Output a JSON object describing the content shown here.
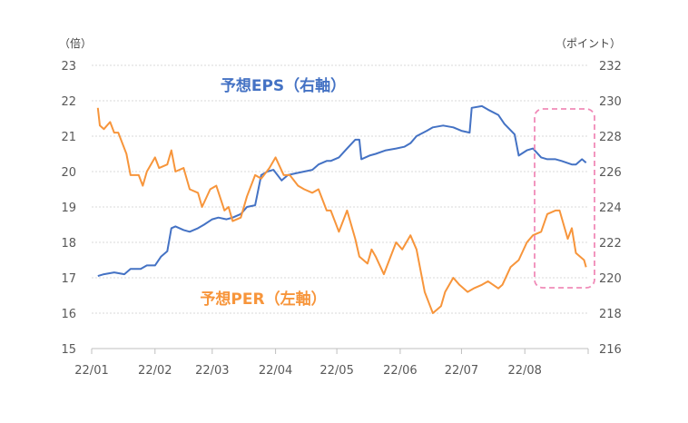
{
  "chart_data": {
    "type": "line",
    "left_axis_unit": "（倍）",
    "right_axis_unit": "（ポイント）",
    "left_ylim": [
      15,
      23
    ],
    "left_yticks": [
      "15",
      "16",
      "17",
      "18",
      "19",
      "20",
      "21",
      "22",
      "23"
    ],
    "right_ylim": [
      216,
      232
    ],
    "right_yticks": [
      "216",
      "218",
      "220",
      "222",
      "224",
      "226",
      "228",
      "230",
      "232"
    ],
    "x_tick_labels": [
      "22/01",
      "22/02",
      "22/03",
      "22/04",
      "22/05",
      "22/06",
      "22/07",
      "22/08"
    ],
    "grid": "horizontal-dotted",
    "series": [
      {
        "name": "予想EPS（右軸）",
        "axis": "right",
        "color": "#4472C4",
        "points": [
          [
            "2022-01-04",
            220.1
          ],
          [
            "2022-01-07",
            220.2
          ],
          [
            "2022-01-12",
            220.3
          ],
          [
            "2022-01-17",
            220.2
          ],
          [
            "2022-01-20",
            220.5
          ],
          [
            "2022-01-25",
            220.5
          ],
          [
            "2022-01-28",
            220.7
          ],
          [
            "2022-02-01",
            220.7
          ],
          [
            "2022-02-04",
            221.2
          ],
          [
            "2022-02-07",
            221.5
          ],
          [
            "2022-02-09",
            222.8
          ],
          [
            "2022-02-11",
            222.9
          ],
          [
            "2022-02-15",
            222.7
          ],
          [
            "2022-02-18",
            222.6
          ],
          [
            "2022-02-22",
            222.8
          ],
          [
            "2022-02-25",
            223.0
          ],
          [
            "2022-03-01",
            223.3
          ],
          [
            "2022-03-04",
            223.4
          ],
          [
            "2022-03-08",
            223.3
          ],
          [
            "2022-03-11",
            223.4
          ],
          [
            "2022-03-15",
            223.6
          ],
          [
            "2022-03-18",
            224.0
          ],
          [
            "2022-03-22",
            224.1
          ],
          [
            "2022-03-25",
            225.8
          ],
          [
            "2022-03-28",
            226.0
          ],
          [
            "2022-03-31",
            226.1
          ],
          [
            "2022-04-04",
            225.5
          ],
          [
            "2022-04-07",
            225.8
          ],
          [
            "2022-04-11",
            225.9
          ],
          [
            "2022-04-15",
            226.0
          ],
          [
            "2022-04-19",
            226.1
          ],
          [
            "2022-04-22",
            226.4
          ],
          [
            "2022-04-26",
            226.6
          ],
          [
            "2022-04-28",
            226.6
          ],
          [
            "2022-05-02",
            226.8
          ],
          [
            "2022-05-06",
            227.3
          ],
          [
            "2022-05-10",
            227.8
          ],
          [
            "2022-05-12",
            227.8
          ],
          [
            "2022-05-13",
            226.7
          ],
          [
            "2022-05-17",
            226.9
          ],
          [
            "2022-05-20",
            227.0
          ],
          [
            "2022-05-25",
            227.2
          ],
          [
            "2022-05-30",
            227.3
          ],
          [
            "2022-06-03",
            227.4
          ],
          [
            "2022-06-06",
            227.6
          ],
          [
            "2022-06-09",
            228.0
          ],
          [
            "2022-06-14",
            228.3
          ],
          [
            "2022-06-17",
            228.5
          ],
          [
            "2022-06-22",
            228.6
          ],
          [
            "2022-06-27",
            228.5
          ],
          [
            "2022-07-01",
            228.3
          ],
          [
            "2022-07-05",
            228.2
          ],
          [
            "2022-07-06",
            229.6
          ],
          [
            "2022-07-11",
            229.7
          ],
          [
            "2022-07-14",
            229.5
          ],
          [
            "2022-07-19",
            229.2
          ],
          [
            "2022-07-22",
            228.7
          ],
          [
            "2022-07-27",
            228.1
          ],
          [
            "2022-07-29",
            226.9
          ],
          [
            "2022-08-02",
            227.2
          ],
          [
            "2022-08-05",
            227.3
          ],
          [
            "2022-08-09",
            226.8
          ],
          [
            "2022-08-12",
            226.7
          ],
          [
            "2022-08-16",
            226.7
          ],
          [
            "2022-08-19",
            226.6
          ],
          [
            "2022-08-24",
            226.4
          ],
          [
            "2022-08-26",
            226.4
          ],
          [
            "2022-08-29",
            226.7
          ],
          [
            "2022-08-31",
            226.5
          ]
        ]
      },
      {
        "name": "予想PER（左軸）",
        "axis": "left",
        "color": "#F7953B",
        "points": [
          [
            "2022-01-04",
            21.8
          ],
          [
            "2022-01-05",
            21.3
          ],
          [
            "2022-01-07",
            21.2
          ],
          [
            "2022-01-10",
            21.4
          ],
          [
            "2022-01-12",
            21.1
          ],
          [
            "2022-01-14",
            21.1
          ],
          [
            "2022-01-18",
            20.5
          ],
          [
            "2022-01-20",
            19.9
          ],
          [
            "2022-01-24",
            19.9
          ],
          [
            "2022-01-26",
            19.6
          ],
          [
            "2022-01-28",
            20.0
          ],
          [
            "2022-02-01",
            20.4
          ],
          [
            "2022-02-03",
            20.1
          ],
          [
            "2022-02-07",
            20.2
          ],
          [
            "2022-02-09",
            20.6
          ],
          [
            "2022-02-11",
            20.0
          ],
          [
            "2022-02-15",
            20.1
          ],
          [
            "2022-02-18",
            19.5
          ],
          [
            "2022-02-22",
            19.4
          ],
          [
            "2022-02-24",
            19.0
          ],
          [
            "2022-02-28",
            19.5
          ],
          [
            "2022-03-03",
            19.6
          ],
          [
            "2022-03-07",
            18.9
          ],
          [
            "2022-03-09",
            19.0
          ],
          [
            "2022-03-11",
            18.6
          ],
          [
            "2022-03-15",
            18.7
          ],
          [
            "2022-03-18",
            19.3
          ],
          [
            "2022-03-22",
            19.9
          ],
          [
            "2022-03-25",
            19.8
          ],
          [
            "2022-03-29",
            20.1
          ],
          [
            "2022-04-01",
            20.4
          ],
          [
            "2022-04-05",
            19.9
          ],
          [
            "2022-04-08",
            19.9
          ],
          [
            "2022-04-12",
            19.6
          ],
          [
            "2022-04-15",
            19.5
          ],
          [
            "2022-04-19",
            19.4
          ],
          [
            "2022-04-22",
            19.5
          ],
          [
            "2022-04-26",
            18.9
          ],
          [
            "2022-04-28",
            18.9
          ],
          [
            "2022-05-02",
            18.3
          ],
          [
            "2022-05-06",
            18.9
          ],
          [
            "2022-05-10",
            18.1
          ],
          [
            "2022-05-12",
            17.6
          ],
          [
            "2022-05-16",
            17.4
          ],
          [
            "2022-05-18",
            17.8
          ],
          [
            "2022-05-20",
            17.6
          ],
          [
            "2022-05-24",
            17.1
          ],
          [
            "2022-05-26",
            17.4
          ],
          [
            "2022-05-30",
            18.0
          ],
          [
            "2022-06-02",
            17.8
          ],
          [
            "2022-06-06",
            18.2
          ],
          [
            "2022-06-09",
            17.8
          ],
          [
            "2022-06-13",
            16.6
          ],
          [
            "2022-06-15",
            16.3
          ],
          [
            "2022-06-17",
            16.0
          ],
          [
            "2022-06-21",
            16.2
          ],
          [
            "2022-06-23",
            16.6
          ],
          [
            "2022-06-27",
            17.0
          ],
          [
            "2022-06-30",
            16.8
          ],
          [
            "2022-07-04",
            16.6
          ],
          [
            "2022-07-07",
            16.7
          ],
          [
            "2022-07-11",
            16.8
          ],
          [
            "2022-07-14",
            16.9
          ],
          [
            "2022-07-19",
            16.7
          ],
          [
            "2022-07-21",
            16.8
          ],
          [
            "2022-07-25",
            17.3
          ],
          [
            "2022-07-27",
            17.4
          ],
          [
            "2022-07-29",
            17.5
          ],
          [
            "2022-08-02",
            18.0
          ],
          [
            "2022-08-05",
            18.2
          ],
          [
            "2022-08-09",
            18.3
          ],
          [
            "2022-08-12",
            18.8
          ],
          [
            "2022-08-16",
            18.9
          ],
          [
            "2022-08-18",
            18.9
          ],
          [
            "2022-08-22",
            18.1
          ],
          [
            "2022-08-24",
            18.4
          ],
          [
            "2022-08-26",
            17.7
          ],
          [
            "2022-08-30",
            17.5
          ],
          [
            "2022-08-31",
            17.3
          ]
        ]
      }
    ]
  }
}
